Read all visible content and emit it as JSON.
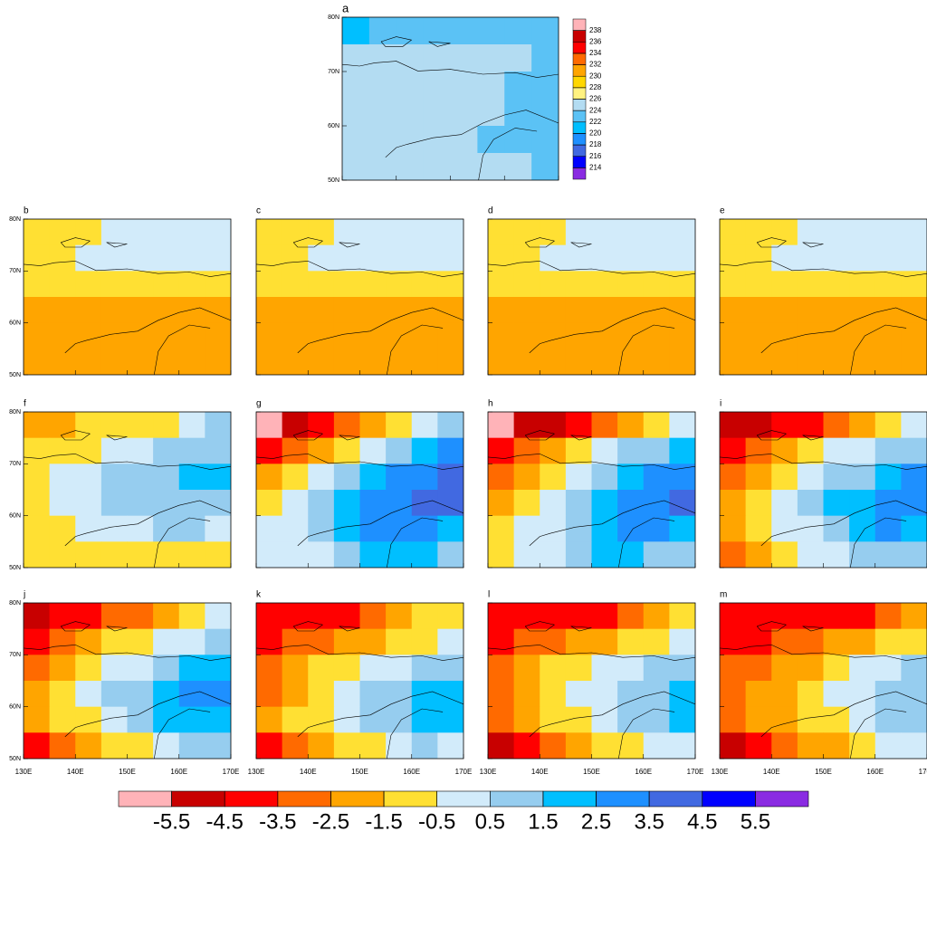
{
  "chart_data": {
    "type": "heatmap",
    "xticks": [
      {
        "value": 130,
        "label": "130E"
      },
      {
        "value": 140,
        "label": "140E"
      },
      {
        "value": 150,
        "label": "150E"
      },
      {
        "value": 160,
        "label": "160E"
      },
      {
        "value": 170,
        "label": "170E"
      }
    ],
    "yticks": [
      {
        "value": 50,
        "label": "50N"
      },
      {
        "value": 60,
        "label": "60N"
      },
      {
        "value": 70,
        "label": "70N"
      },
      {
        "value": 80,
        "label": "80N"
      }
    ],
    "xlim": [
      130,
      170
    ],
    "ylim": [
      50,
      80
    ],
    "mean_scale": {
      "levels": [
        214,
        216,
        218,
        220,
        222,
        224,
        226,
        228,
        230,
        232,
        234,
        236,
        238
      ],
      "colors": [
        "#8a2be2",
        "#0000ff",
        "#4169e1",
        "#1e90ff",
        "#00bfff",
        "#5bc2f5",
        "#b3dcf2",
        "#fff280",
        "#ffd700",
        "#ffa500",
        "#ff6a00",
        "#ff0000",
        "#c80000",
        "#ffb3b8"
      ]
    },
    "anomaly_scale": {
      "levels": [
        -5.5,
        -4.5,
        -3.5,
        -2.5,
        -1.5,
        -0.5,
        0.5,
        1.5,
        2.5,
        3.5,
        4.5,
        5.5
      ],
      "colors": [
        "#ffb3b8",
        "#c80000",
        "#ff0000",
        "#ff6a00",
        "#ffa500",
        "#ffe033",
        "#d2ebfa",
        "#96cdef",
        "#00bfff",
        "#1e90ff",
        "#4169e1",
        "#0000ff",
        "#8a2be2"
      ]
    },
    "panels": [
      {
        "label": "a",
        "scale": "mean_scale",
        "values": [
          [
            221,
            223,
            223,
            223,
            223,
            223,
            223,
            223
          ],
          [
            225,
            225,
            225,
            225,
            225,
            225,
            225,
            223
          ],
          [
            225,
            225,
            225,
            225,
            225,
            225,
            223,
            223
          ],
          [
            225,
            225,
            225,
            225,
            225,
            225,
            223,
            223
          ],
          [
            225,
            225,
            225,
            225,
            225,
            223,
            223,
            223
          ],
          [
            225,
            225,
            225,
            225,
            225,
            225,
            225,
            223
          ]
        ]
      },
      {
        "label": "b",
        "scale": "anomaly_scale",
        "values": [
          [
            -1,
            -1,
            -1,
            0,
            0,
            0,
            0,
            0
          ],
          [
            -1,
            -1,
            0,
            0,
            0,
            0,
            0,
            0
          ],
          [
            -1,
            -1,
            -1,
            -1,
            -1,
            -1,
            -1,
            -1
          ],
          [
            -2,
            -2,
            -2,
            -2,
            -2,
            -2,
            -2,
            -2
          ],
          [
            -2,
            -2,
            -2,
            -2,
            -2,
            -2,
            -2,
            -2
          ],
          [
            -2,
            -2,
            -2,
            -2,
            -2,
            -2,
            -2,
            -2
          ]
        ]
      },
      {
        "label": "c",
        "scale": "anomaly_scale",
        "values": [
          [
            -1,
            -1,
            -1,
            0,
            0,
            0,
            0,
            0
          ],
          [
            -1,
            -1,
            0,
            0,
            0,
            0,
            0,
            0
          ],
          [
            -1,
            -1,
            -1,
            -1,
            -1,
            -1,
            -1,
            -1
          ],
          [
            -2,
            -2,
            -2,
            -2,
            -2,
            -2,
            -2,
            -2
          ],
          [
            -2,
            -2,
            -2,
            -2,
            -2,
            -2,
            -2,
            -2
          ],
          [
            -2,
            -2,
            -2,
            -2,
            -2,
            -2,
            -2,
            -2
          ]
        ]
      },
      {
        "label": "d",
        "scale": "anomaly_scale",
        "values": [
          [
            -1,
            -1,
            -1,
            0,
            0,
            0,
            0,
            0
          ],
          [
            -1,
            -1,
            0,
            0,
            0,
            0,
            0,
            0
          ],
          [
            -1,
            -1,
            -1,
            -1,
            -1,
            -1,
            -1,
            -1
          ],
          [
            -2,
            -2,
            -2,
            -2,
            -2,
            -2,
            -2,
            -2
          ],
          [
            -2,
            -2,
            -2,
            -2,
            -2,
            -2,
            -2,
            -2
          ],
          [
            -2,
            -2,
            -2,
            -2,
            -2,
            -2,
            -2,
            -2
          ]
        ]
      },
      {
        "label": "e",
        "scale": "anomaly_scale",
        "values": [
          [
            -1,
            -1,
            -1,
            0,
            0,
            0,
            0,
            0
          ],
          [
            -1,
            -1,
            0,
            0,
            0,
            0,
            0,
            0
          ],
          [
            -1,
            -1,
            -1,
            -1,
            -1,
            -1,
            -1,
            -1
          ],
          [
            -2,
            -2,
            -2,
            -2,
            -2,
            -2,
            -2,
            -2
          ],
          [
            -2,
            -2,
            -2,
            -2,
            -2,
            -2,
            -2,
            -2
          ],
          [
            -2,
            -2,
            -2,
            -2,
            -2,
            -2,
            -2,
            -2
          ]
        ]
      },
      {
        "label": "f",
        "scale": "anomaly_scale",
        "values": [
          [
            -2,
            -2,
            -1,
            -1,
            -1,
            -1,
            0,
            1
          ],
          [
            -1,
            -1,
            -1,
            0,
            0,
            1,
            1,
            1
          ],
          [
            -1,
            0,
            0,
            1,
            1,
            1,
            2,
            2
          ],
          [
            -1,
            0,
            0,
            1,
            1,
            1,
            1,
            1
          ],
          [
            -1,
            -1,
            0,
            0,
            0,
            1,
            1,
            0
          ],
          [
            -1,
            -1,
            -1,
            -1,
            -1,
            -1,
            -1,
            -1
          ]
        ]
      },
      {
        "label": "g",
        "scale": "anomaly_scale",
        "values": [
          [
            -6,
            -5,
            -4,
            -3,
            -2,
            -1,
            0,
            1
          ],
          [
            -4,
            -3,
            -2,
            -1,
            0,
            1,
            2,
            3
          ],
          [
            -2,
            -1,
            0,
            1,
            2,
            3,
            3,
            4
          ],
          [
            -1,
            0,
            1,
            2,
            3,
            3,
            4,
            4
          ],
          [
            0,
            0,
            1,
            2,
            3,
            3,
            3,
            2
          ],
          [
            0,
            0,
            0,
            1,
            2,
            2,
            2,
            1
          ]
        ]
      },
      {
        "label": "h",
        "scale": "anomaly_scale",
        "values": [
          [
            -6,
            -5,
            -5,
            -4,
            -3,
            -2,
            -1,
            0
          ],
          [
            -4,
            -3,
            -2,
            -1,
            0,
            1,
            1,
            2
          ],
          [
            -3,
            -2,
            -1,
            0,
            1,
            2,
            3,
            3
          ],
          [
            -2,
            -1,
            0,
            1,
            2,
            3,
            3,
            4
          ],
          [
            -1,
            0,
            0,
            1,
            2,
            3,
            3,
            2
          ],
          [
            -1,
            0,
            0,
            1,
            2,
            2,
            1,
            1
          ]
        ]
      },
      {
        "label": "i",
        "scale": "anomaly_scale",
        "values": [
          [
            -5,
            -5,
            -4,
            -4,
            -3,
            -2,
            -1,
            0
          ],
          [
            -4,
            -3,
            -2,
            -1,
            0,
            0,
            1,
            1
          ],
          [
            -3,
            -2,
            -1,
            0,
            1,
            1,
            2,
            3
          ],
          [
            -2,
            -1,
            0,
            1,
            2,
            2,
            3,
            3
          ],
          [
            -2,
            -1,
            0,
            0,
            1,
            2,
            3,
            2
          ],
          [
            -3,
            -2,
            -1,
            0,
            0,
            1,
            1,
            1
          ]
        ]
      },
      {
        "label": "j",
        "scale": "anomaly_scale",
        "values": [
          [
            -5,
            -4,
            -4,
            -3,
            -3,
            -2,
            -1,
            0
          ],
          [
            -4,
            -3,
            -2,
            -1,
            -1,
            0,
            0,
            1
          ],
          [
            -3,
            -2,
            -1,
            0,
            0,
            1,
            2,
            2
          ],
          [
            -2,
            -1,
            0,
            1,
            1,
            2,
            3,
            3
          ],
          [
            -2,
            -1,
            -1,
            0,
            1,
            2,
            2,
            2
          ],
          [
            -4,
            -3,
            -2,
            -1,
            -1,
            0,
            1,
            1
          ]
        ]
      },
      {
        "label": "k",
        "scale": "anomaly_scale",
        "values": [
          [
            -4,
            -4,
            -4,
            -4,
            -3,
            -2,
            -1,
            -1
          ],
          [
            -4,
            -3,
            -3,
            -2,
            -2,
            -1,
            -1,
            0
          ],
          [
            -3,
            -2,
            -1,
            -1,
            0,
            0,
            1,
            1
          ],
          [
            -3,
            -2,
            -1,
            0,
            1,
            1,
            2,
            2
          ],
          [
            -2,
            -1,
            -1,
            0,
            1,
            1,
            2,
            2
          ],
          [
            -4,
            -3,
            -2,
            -1,
            -1,
            0,
            1,
            0
          ]
        ]
      },
      {
        "label": "l",
        "scale": "anomaly_scale",
        "values": [
          [
            -4,
            -4,
            -4,
            -4,
            -4,
            -3,
            -2,
            -1
          ],
          [
            -4,
            -3,
            -3,
            -2,
            -2,
            -1,
            -1,
            0
          ],
          [
            -3,
            -2,
            -1,
            -1,
            0,
            0,
            1,
            1
          ],
          [
            -3,
            -2,
            -1,
            0,
            0,
            1,
            1,
            2
          ],
          [
            -3,
            -2,
            -1,
            -1,
            0,
            1,
            1,
            2
          ],
          [
            -5,
            -4,
            -3,
            -2,
            -1,
            -1,
            0,
            0
          ]
        ]
      },
      {
        "label": "m",
        "scale": "anomaly_scale",
        "values": [
          [
            -4,
            -4,
            -4,
            -4,
            -4,
            -4,
            -3,
            -2
          ],
          [
            -4,
            -4,
            -3,
            -3,
            -2,
            -2,
            -1,
            -1
          ],
          [
            -3,
            -3,
            -2,
            -2,
            -1,
            0,
            0,
            1
          ],
          [
            -3,
            -2,
            -2,
            -1,
            0,
            0,
            1,
            1
          ],
          [
            -3,
            -2,
            -2,
            -1,
            -1,
            0,
            1,
            1
          ],
          [
            -5,
            -4,
            -3,
            -2,
            -2,
            -1,
            0,
            0
          ]
        ]
      }
    ]
  }
}
